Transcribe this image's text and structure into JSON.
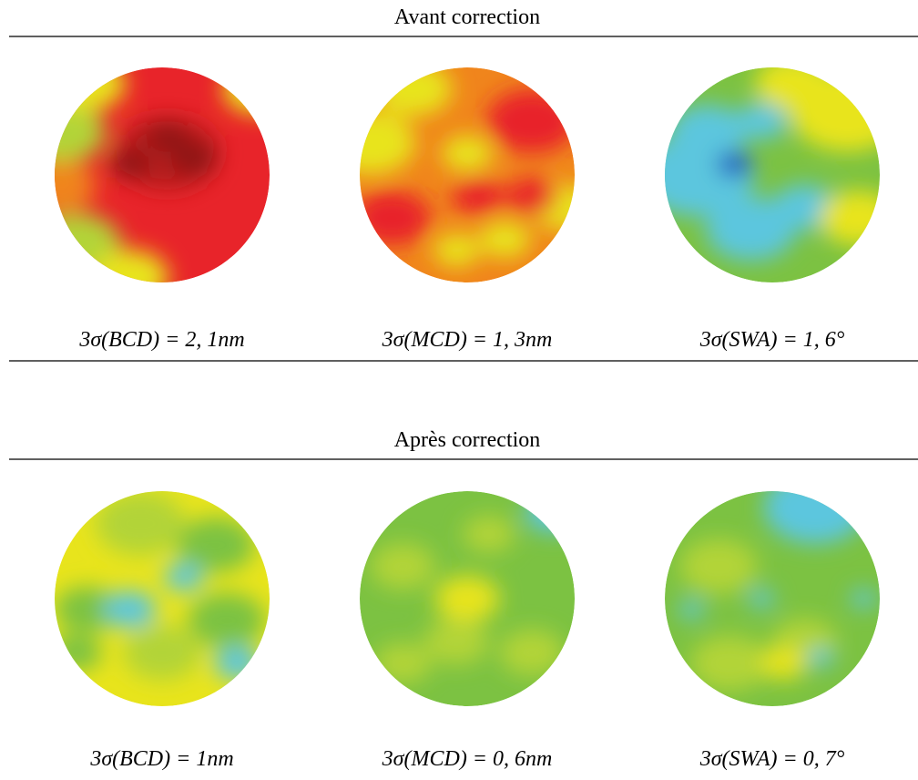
{
  "sections": [
    {
      "title": "Avant correction",
      "captions": [
        "3σ(BCD) = 2, 1nm",
        "3σ(MCD) = 1, 3nm",
        "3σ(SWA) = 1, 6°"
      ]
    },
    {
      "title": "Après correction",
      "captions": [
        "3σ(BCD) = 1nm",
        "3σ(MCD) = 0, 6nm",
        "3σ(SWA) = 0, 7°"
      ]
    }
  ]
}
